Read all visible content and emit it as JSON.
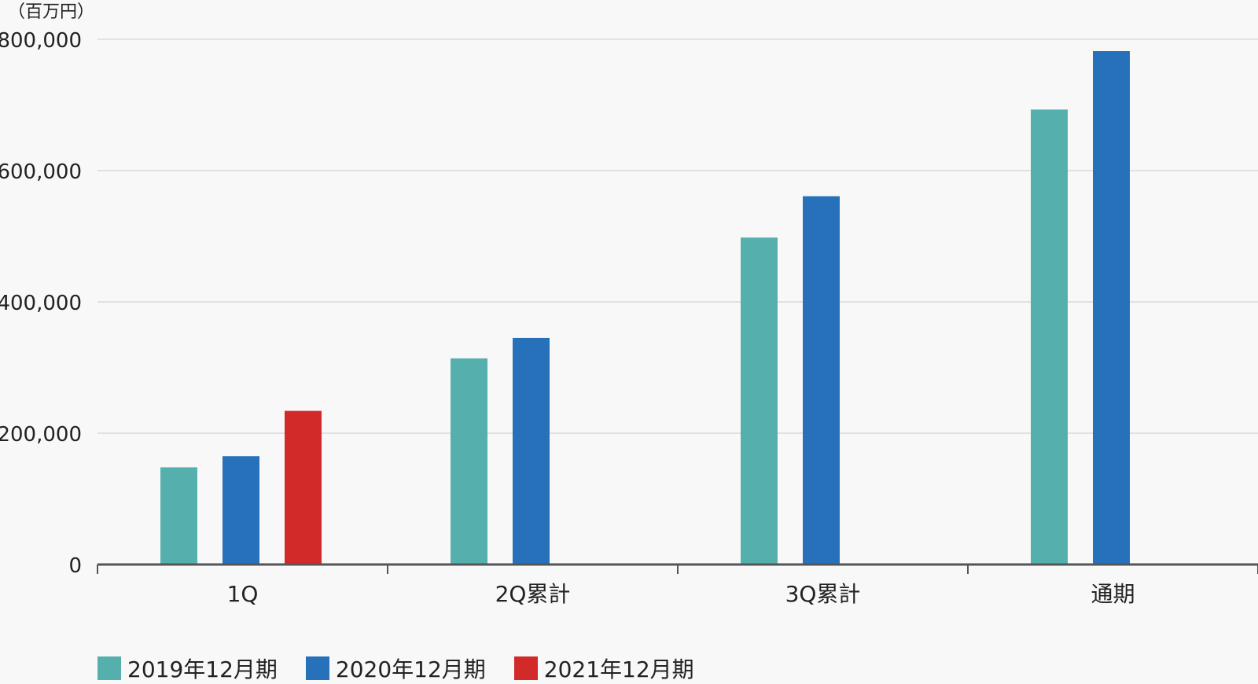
{
  "chart_data": {
    "type": "bar",
    "unit_label": "（百万円）",
    "categories": [
      "1Q",
      "2Q累計",
      "3Q累計",
      "通期"
    ],
    "series": [
      {
        "name": "2019年12月期",
        "color": "#55b0ad",
        "values": [
          148000,
          314000,
          498000,
          693000
        ]
      },
      {
        "name": "2020年12月期",
        "color": "#2671ba",
        "values": [
          165000,
          345000,
          561000,
          782000
        ]
      },
      {
        "name": "2021年12月期",
        "color": "#d12a28",
        "values": [
          234000,
          null,
          null,
          null
        ]
      }
    ],
    "yticks": [
      "0",
      "200,000",
      "400,000",
      "600,000",
      "800,000"
    ],
    "ytick_values": [
      0,
      200000,
      400000,
      600000,
      800000
    ],
    "ylim": [
      0,
      800000
    ],
    "grid": true,
    "legend_position": "bottom-left"
  }
}
